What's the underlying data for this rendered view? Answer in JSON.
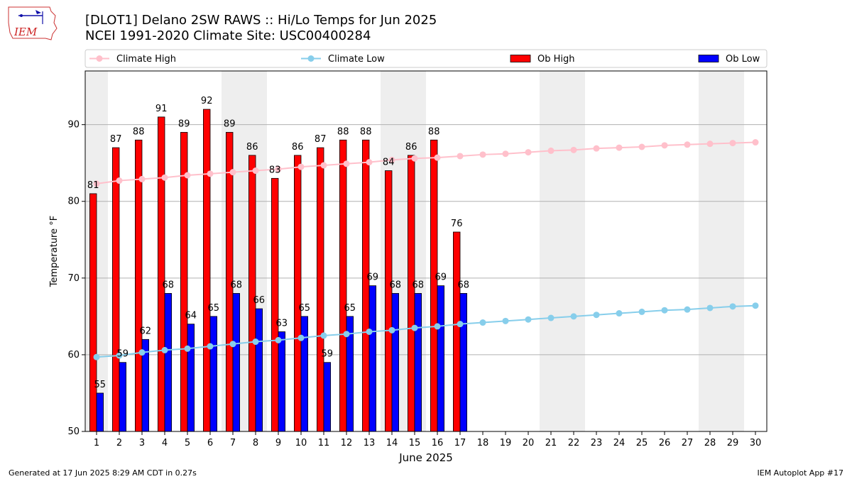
{
  "header": {
    "logo_text": "IEM",
    "title_line1": "[DLOT1] Delano 2SW RAWS :: Hi/Lo Temps for Jun 2025",
    "title_line2": "NCEI 1991-2020 Climate Site: USC00400284"
  },
  "footer": {
    "generated": "Generated at 17 Jun 2025 8:29 AM CDT in 0.27s",
    "app": "IEM Autoplot App #17"
  },
  "colors": {
    "ob_high": "#ff0000",
    "ob_low": "#0000ff",
    "climate_high": "#ffc0cb",
    "climate_low": "#87ceeb",
    "weekend_shade": "#eeeeee",
    "grid": "#b0b0b0"
  },
  "chart_data": {
    "type": "bar",
    "xlabel": "June 2025",
    "ylabel": "Temperature °F",
    "ylim": [
      50,
      97
    ],
    "xlim": [
      0.5,
      30.5
    ],
    "yticks": [
      50,
      60,
      70,
      80,
      90
    ],
    "grid": "horizontal",
    "legend_position": "top",
    "days": [
      1,
      2,
      3,
      4,
      5,
      6,
      7,
      8,
      9,
      10,
      11,
      12,
      13,
      14,
      15,
      16,
      17,
      18,
      19,
      20,
      21,
      22,
      23,
      24,
      25,
      26,
      27,
      28,
      29,
      30
    ],
    "weekend_days": [
      1,
      7,
      8,
      14,
      15,
      21,
      22,
      28,
      29
    ],
    "series": [
      {
        "name": "Climate High",
        "kind": "line",
        "color": "#ffc0cb",
        "values": [
          82.3,
          82.7,
          82.9,
          83.1,
          83.4,
          83.6,
          83.8,
          84.0,
          84.2,
          84.5,
          84.7,
          84.9,
          85.1,
          85.4,
          85.6,
          85.7,
          85.9,
          86.1,
          86.2,
          86.4,
          86.6,
          86.7,
          86.9,
          87.0,
          87.1,
          87.3,
          87.4,
          87.5,
          87.6,
          87.7
        ]
      },
      {
        "name": "Climate Low",
        "kind": "line",
        "color": "#87ceeb",
        "values": [
          59.7,
          59.9,
          60.3,
          60.6,
          60.8,
          61.1,
          61.4,
          61.7,
          61.9,
          62.2,
          62.5,
          62.7,
          63.0,
          63.2,
          63.5,
          63.7,
          64.0,
          64.2,
          64.4,
          64.6,
          64.8,
          65.0,
          65.2,
          65.4,
          65.6,
          65.8,
          65.9,
          66.1,
          66.3,
          66.4
        ]
      },
      {
        "name": "Ob High",
        "kind": "bar",
        "color": "#ff0000",
        "values": [
          81,
          87,
          88,
          91,
          89,
          92,
          89,
          86,
          83,
          86,
          87,
          88,
          88,
          84,
          86,
          88,
          76
        ]
      },
      {
        "name": "Ob Low",
        "kind": "bar",
        "color": "#0000ff",
        "values": [
          55,
          59,
          62,
          68,
          64,
          65,
          68,
          66,
          63,
          65,
          59,
          65,
          69,
          68,
          68,
          69,
          68
        ]
      }
    ]
  }
}
